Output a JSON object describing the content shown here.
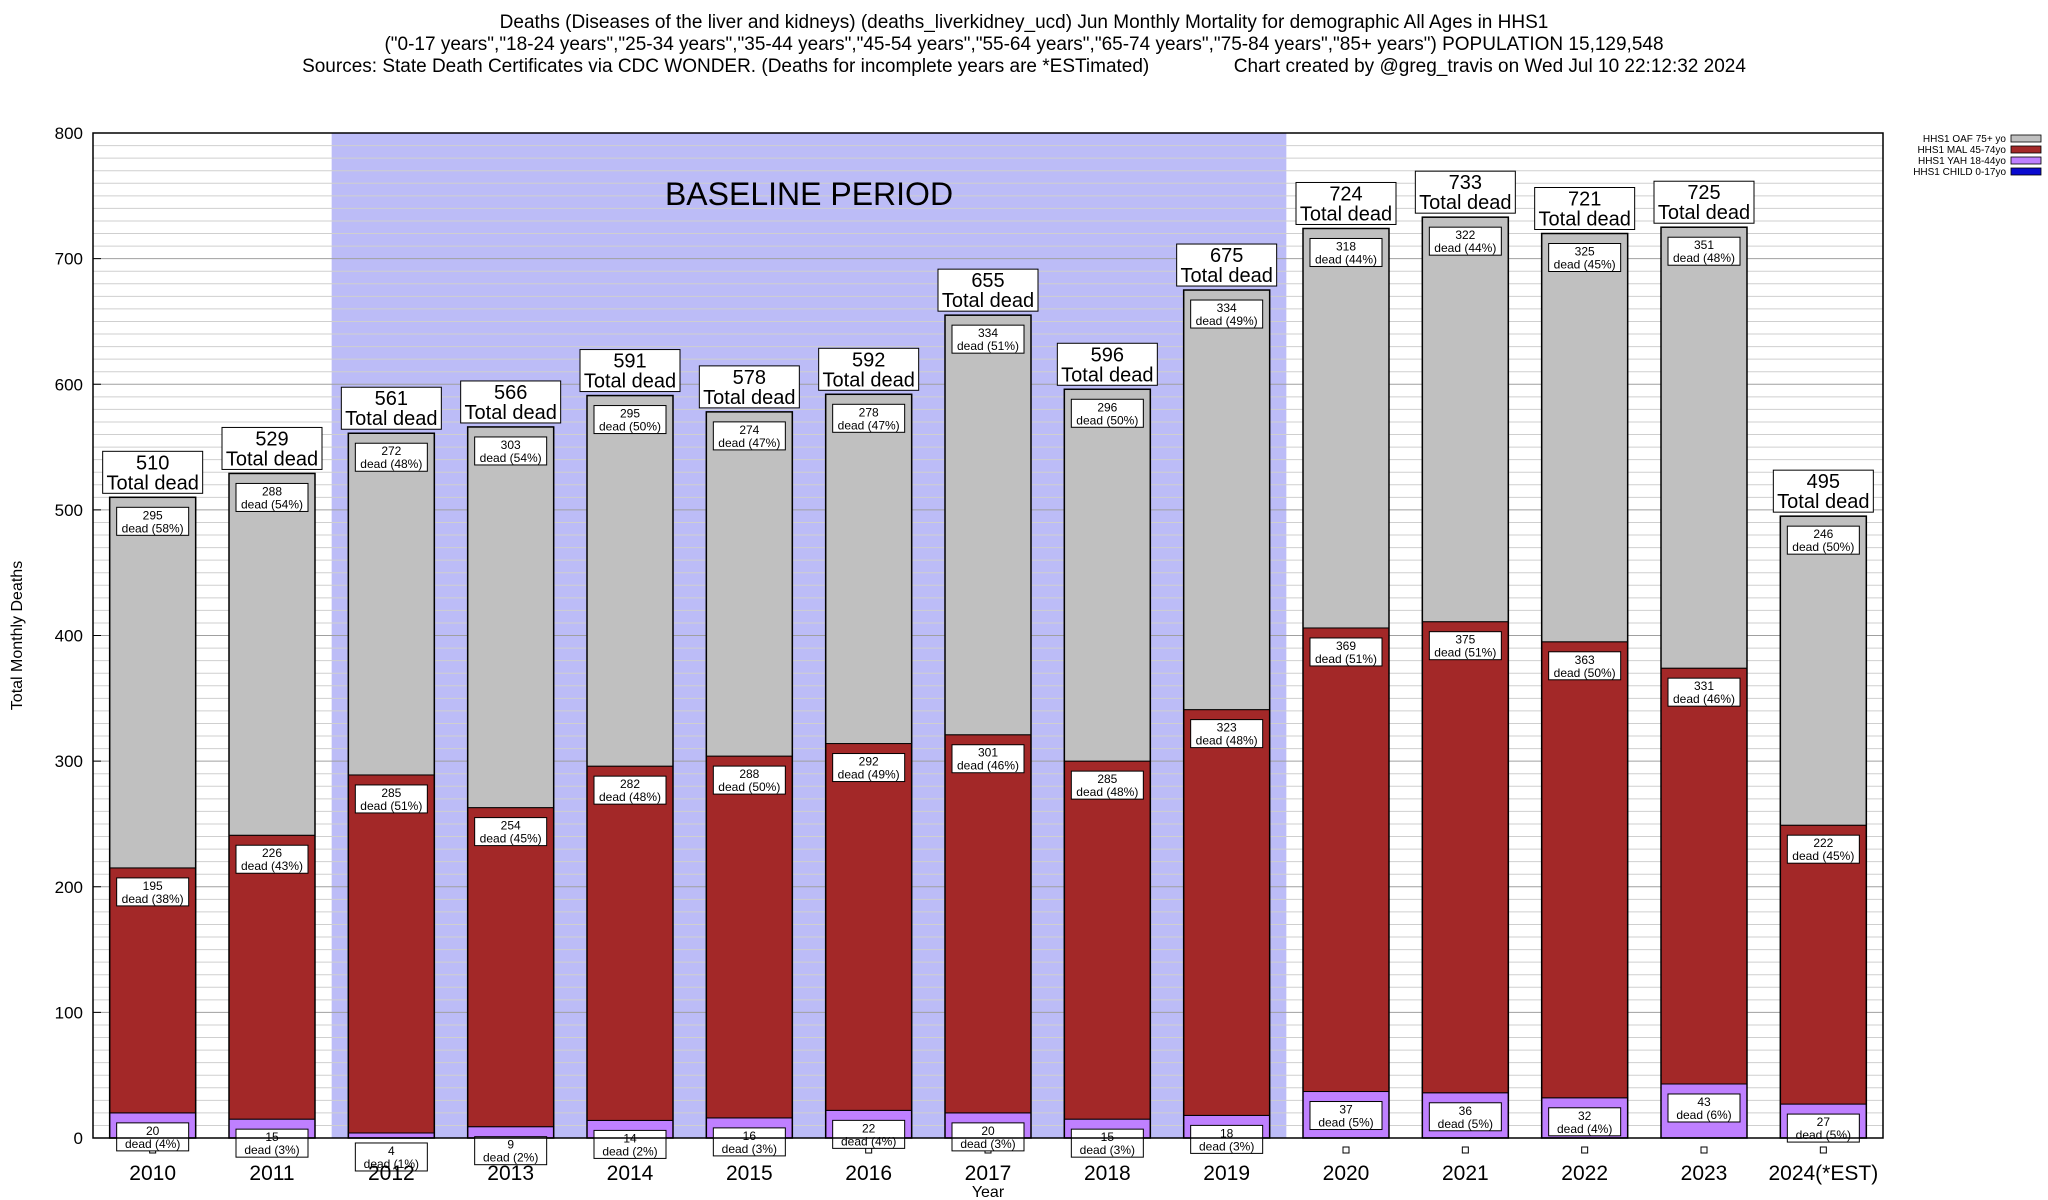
{
  "header": {
    "line1": "Deaths (Diseases of the liver and kidneys) (deaths_liverkidney_ucd) Jun Monthly Mortality for demographic All Ages in HHS1",
    "line2": "(\"0-17 years\",\"18-24 years\",\"25-34 years\",\"35-44 years\",\"45-54 years\",\"55-64 years\",\"65-74 years\",\"75-84 years\",\"85+ years\") POPULATION 15,129,548",
    "line3": "Sources: State Death Certificates via CDC WONDER. (Deaths for incomplete years are *ESTimated)                Chart created by @greg_travis on Wed Jul 10 22:12:32 2024"
  },
  "chart_data": {
    "type": "bar",
    "stacked": true,
    "xlabel": "Year",
    "ylabel": "Total Monthly Deaths",
    "ylim": [
      0,
      800
    ],
    "yticks": [
      0,
      100,
      200,
      300,
      400,
      500,
      600,
      700,
      800
    ],
    "grid": true,
    "legend_position": "top-right",
    "baseline": {
      "label": "BASELINE PERIOD",
      "from": "2012",
      "to": "2019",
      "color": "#bcbcf7"
    },
    "total_suffix": "Total dead",
    "segment_label_prefix": "dead",
    "categories": [
      "2010",
      "2011",
      "2012",
      "2013",
      "2014",
      "2015",
      "2016",
      "2017",
      "2018",
      "2019",
      "2020",
      "2021",
      "2022",
      "2023",
      "2024(*EST)"
    ],
    "totals": [
      510,
      529,
      561,
      566,
      591,
      578,
      592,
      655,
      596,
      675,
      724,
      733,
      721,
      725,
      495
    ],
    "series": [
      {
        "name": "HHS1 CHILD 0-17yo",
        "color": "#0a0ad0",
        "values": [
          0,
          0,
          0,
          0,
          0,
          0,
          0,
          0,
          0,
          0,
          0,
          0,
          0,
          0,
          0
        ],
        "pct": [
          0,
          0,
          0,
          0,
          0,
          0,
          0,
          0,
          0,
          0,
          0,
          0,
          0,
          0,
          0
        ]
      },
      {
        "name": "HHS1 YAH 18-44yo",
        "color": "#bf80ff",
        "values": [
          20,
          15,
          4,
          9,
          14,
          16,
          22,
          20,
          15,
          18,
          37,
          36,
          32,
          43,
          27
        ],
        "pct": [
          4,
          3,
          1,
          2,
          2,
          3,
          4,
          3,
          3,
          3,
          5,
          5,
          4,
          6,
          5
        ]
      },
      {
        "name": "HHS1 MAL 45-74yo",
        "color": "#a32828",
        "values": [
          195,
          226,
          285,
          254,
          282,
          288,
          292,
          301,
          285,
          323,
          369,
          375,
          363,
          331,
          222
        ],
        "pct": [
          38,
          43,
          51,
          45,
          48,
          50,
          49,
          46,
          48,
          48,
          51,
          51,
          50,
          46,
          45
        ]
      },
      {
        "name": "HHS1 OAF 75+ yo",
        "color": "#c0c0c0",
        "values": [
          295,
          288,
          272,
          303,
          295,
          274,
          278,
          334,
          296,
          334,
          318,
          322,
          325,
          351,
          246
        ],
        "pct": [
          58,
          54,
          48,
          54,
          50,
          47,
          47,
          51,
          50,
          49,
          44,
          44,
          45,
          48,
          50
        ]
      }
    ]
  }
}
